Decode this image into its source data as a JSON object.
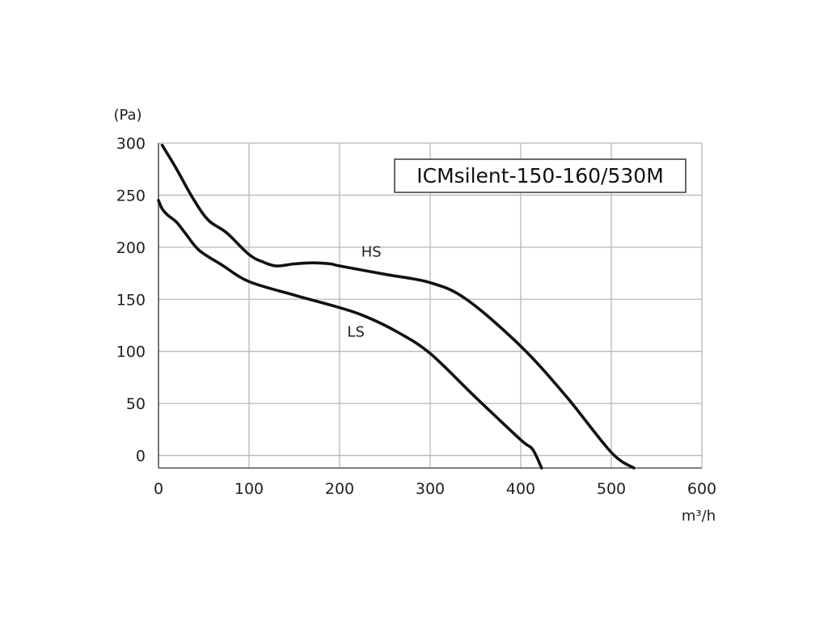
{
  "chart_data": {
    "type": "line",
    "title": "ICMsilent-150-160/530M",
    "xlabel": "m³/h",
    "ylabel": "(Pa)",
    "xlim": [
      0,
      600
    ],
    "ylim": [
      -12,
      300
    ],
    "x_ticks": [
      "0",
      "100",
      "200",
      "300",
      "400",
      "500",
      "600"
    ],
    "y_ticks": [
      "0",
      "50",
      "100",
      "150",
      "200",
      "250",
      "300"
    ],
    "grid": true,
    "series": [
      {
        "name": "HS",
        "points": [
          [
            4,
            298
          ],
          [
            20,
            275
          ],
          [
            38,
            247
          ],
          [
            55,
            226
          ],
          [
            75,
            214
          ],
          [
            100,
            193
          ],
          [
            115,
            186
          ],
          [
            130,
            182
          ],
          [
            150,
            184
          ],
          [
            170,
            185
          ],
          [
            190,
            184
          ],
          [
            200,
            182
          ],
          [
            250,
            174
          ],
          [
            300,
            166
          ],
          [
            340,
            150
          ],
          [
            400,
            105
          ],
          [
            450,
            57
          ],
          [
            500,
            3
          ],
          [
            525,
            -12
          ]
        ]
      },
      {
        "name": "LS",
        "points": [
          [
            0,
            245
          ],
          [
            4,
            237
          ],
          [
            10,
            231
          ],
          [
            20,
            224
          ],
          [
            30,
            213
          ],
          [
            45,
            197
          ],
          [
            70,
            183
          ],
          [
            100,
            167
          ],
          [
            150,
            154
          ],
          [
            200,
            142
          ],
          [
            230,
            133
          ],
          [
            265,
            118
          ],
          [
            300,
            98
          ],
          [
            350,
            56
          ],
          [
            400,
            15
          ],
          [
            413,
            6
          ],
          [
            423,
            -12
          ]
        ]
      }
    ],
    "colors": {
      "line": "#111111",
      "grid": "#b8b8b8",
      "axis": "#555555",
      "text": "#1f1f1f"
    }
  }
}
